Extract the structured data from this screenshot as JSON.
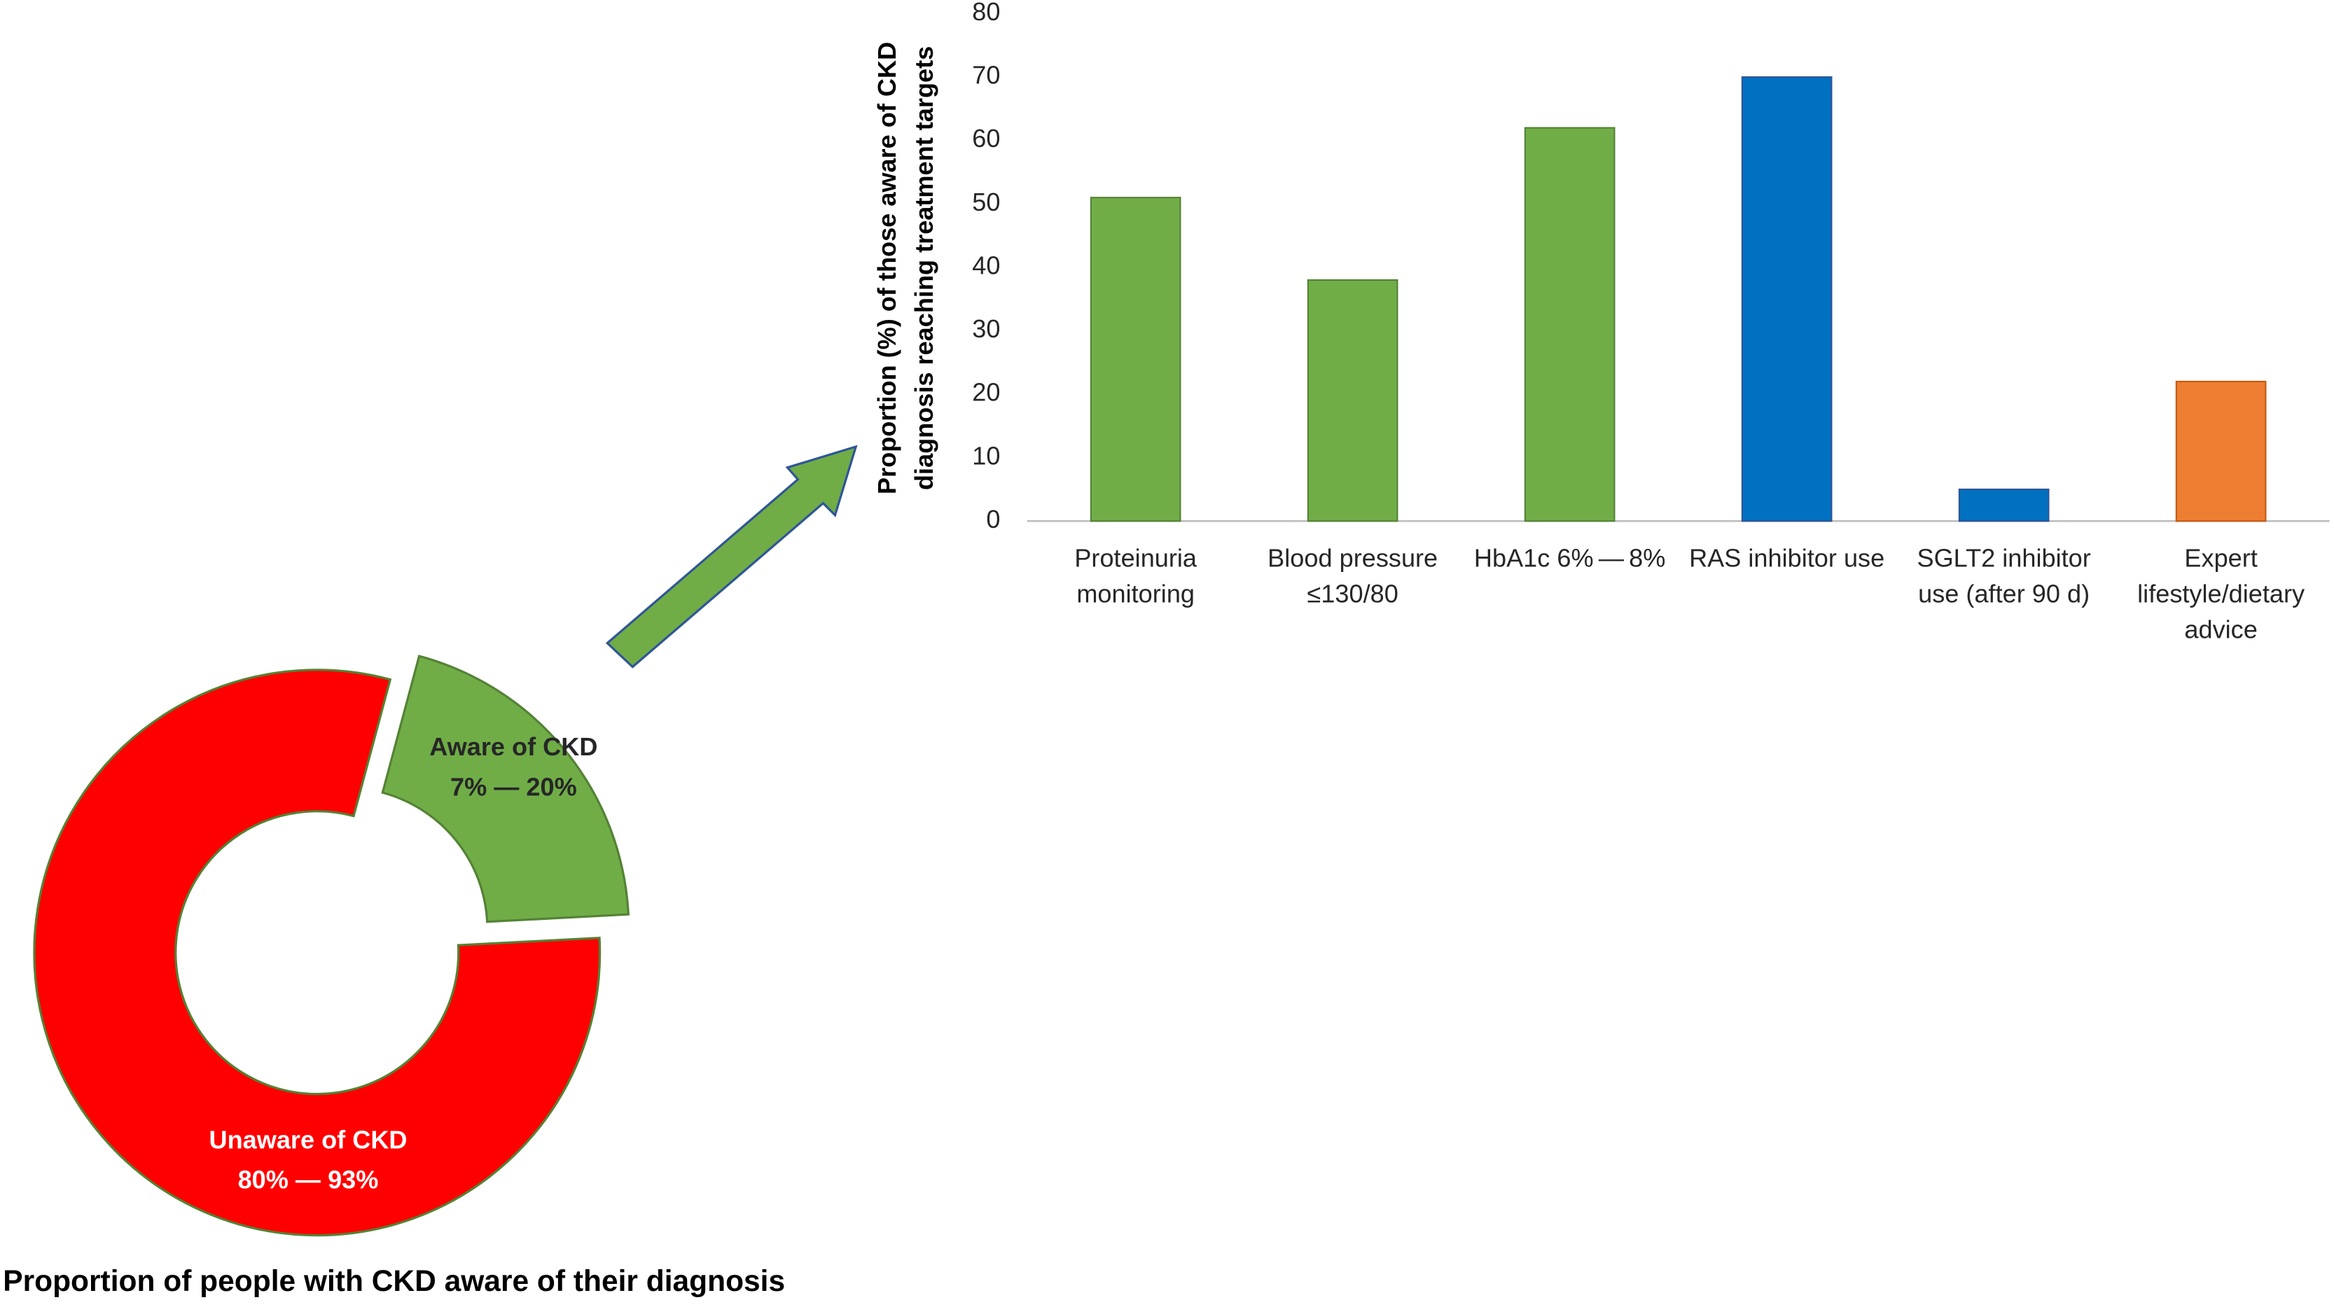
{
  "chart_data": [
    {
      "type": "pie",
      "title": "Proportion of people with CKD aware of their diagnosis",
      "categories": [
        "Aware of CKD",
        "Unaware of CKD"
      ],
      "values": [
        20,
        80
      ],
      "value_labels": [
        "7% — 20%",
        "80% — 93%"
      ],
      "colors": [
        "#70ad47",
        "#ff0000"
      ],
      "label_colors": [
        "#262626",
        "#ffffff"
      ]
    },
    {
      "type": "bar",
      "ylabel": "Proportion (%) of those aware of CKD\ndiagnosis reaching treatment targets",
      "categories": [
        "Proteinuria\nmonitoring",
        "Blood pressure\n≤130/80",
        "HbA1c 6% — 8%",
        "RAS inhibitor use",
        "SGLT2 inhibitor\nuse (after 90 d)",
        "Expert\nlifestyle/dietary\nadvice"
      ],
      "values": [
        51,
        38,
        62,
        70,
        5,
        22
      ],
      "colors": [
        "#70ad47",
        "#70ad47",
        "#70ad47",
        "#0070c0",
        "#0070c0",
        "#ed7d31"
      ],
      "ylim": [
        0,
        80
      ],
      "yticks": [
        0,
        10,
        20,
        30,
        40,
        50,
        60,
        70,
        80
      ],
      "grid": false
    }
  ]
}
